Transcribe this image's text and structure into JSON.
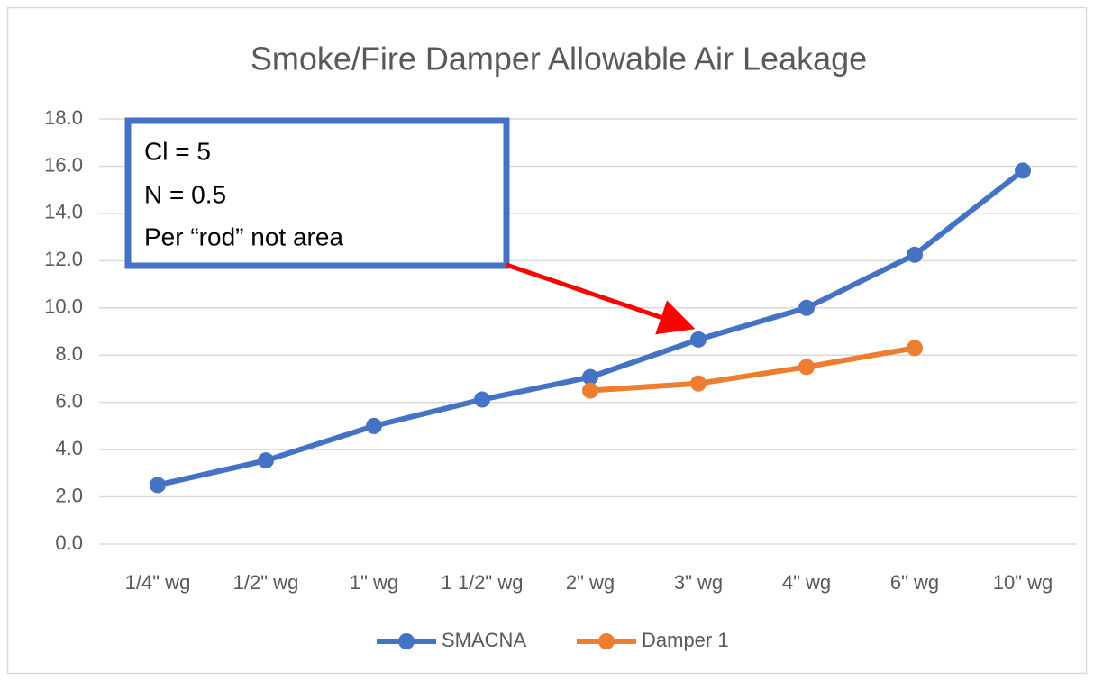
{
  "chart_data": {
    "type": "line",
    "title": "Smoke/Fire Damper Allowable Air Leakage",
    "categories": [
      "1/4\" wg",
      "1/2\" wg",
      "1\" wg",
      "1 1/2\" wg",
      "2\" wg",
      "3\" wg",
      "4\" wg",
      "6\" wg",
      "10\" wg"
    ],
    "series": [
      {
        "name": "SMACNA",
        "color": "#4472c4",
        "values": [
          2.5,
          3.54,
          5.0,
          6.12,
          7.07,
          8.66,
          10.0,
          12.25,
          15.81
        ]
      },
      {
        "name": "Damper 1",
        "color": "#ed7d31",
        "values": [
          null,
          null,
          null,
          null,
          6.5,
          6.8,
          7.5,
          8.3,
          null
        ]
      }
    ],
    "ylim": [
      0,
      18
    ],
    "yticks": [
      {
        "value": 0,
        "label": "0.0"
      },
      {
        "value": 2,
        "label": "2.0"
      },
      {
        "value": 4,
        "label": "4.0"
      },
      {
        "value": 6,
        "label": "6.0"
      },
      {
        "value": 8,
        "label": "8.0"
      },
      {
        "value": 10,
        "label": "10.0"
      },
      {
        "value": 12,
        "label": "12.0"
      },
      {
        "value": 14,
        "label": "14.0"
      },
      {
        "value": 16,
        "label": "16.0"
      },
      {
        "value": 18,
        "label": "18.0"
      }
    ],
    "grid": true,
    "legend": "bottom",
    "annotations": [
      "Cl = 5",
      "N = 0.5",
      "Per “rod” not area"
    ]
  }
}
